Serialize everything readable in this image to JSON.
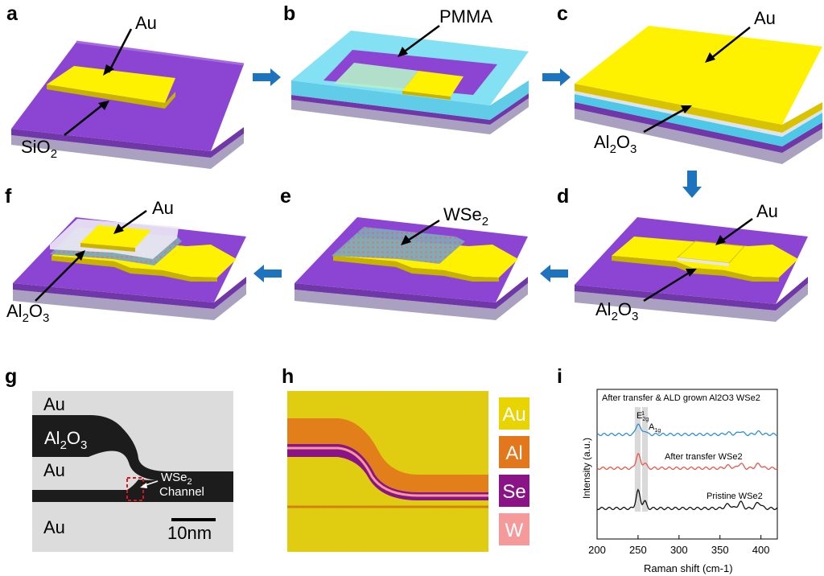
{
  "panels": {
    "a": {
      "letter": "a",
      "top_label": "Au",
      "bottom_label": "SiO"
    },
    "b": {
      "letter": "b",
      "label": "PMMA"
    },
    "c": {
      "letter": "c",
      "top_label": "Au",
      "bottom_label": "Al"
    },
    "d": {
      "letter": "d",
      "top_label": "Au",
      "bottom_label": "Al"
    },
    "e": {
      "letter": "e",
      "label": "WSe"
    },
    "f": {
      "letter": "f",
      "top_label": "Au",
      "bottom_label": "Al"
    },
    "g": {
      "letter": "g",
      "au1": "Au",
      "al2o3": "Al",
      "au2": "Au",
      "au3": "Au",
      "wse2": "WSe",
      "channel": "Channel",
      "scale": "10nm"
    },
    "h": {
      "letter": "h",
      "legend": [
        {
          "label": "Au",
          "color": "#e8d400"
        },
        {
          "label": "Al",
          "color": "#e3771c"
        },
        {
          "label": "Se",
          "color": "#8a1486"
        },
        {
          "label": "W",
          "color": "#f59a9a"
        }
      ]
    },
    "i": {
      "letter": "i"
    }
  },
  "subscripts": {
    "two": "2",
    "three": "3",
    "e_sub": "2g",
    "e_sup": "1",
    "a_sub": "1g"
  },
  "chart_data": {
    "type": "line",
    "title": "After transfer & ALD grown Al2O3 WSe2",
    "xlabel": "Raman shift (cm-1)",
    "ylabel": "Intensity (a.u.)",
    "xlim": [
      200,
      420
    ],
    "xticks": [
      200,
      250,
      300,
      350,
      400
    ],
    "peak_labels": {
      "e": "E",
      "a": "A"
    },
    "series": [
      {
        "name": "After transfer & ALD grown Al2O3 WSe2",
        "color": "#2e8fd6"
      },
      {
        "name": "After transfer  WSe2",
        "color": "#e8574a"
      },
      {
        "name": "Pristine WSe2",
        "color": "#111111"
      }
    ],
    "peaks_cm": [
      250,
      258,
      360,
      375,
      397
    ],
    "highlight_bands": [
      [
        246,
        253
      ],
      [
        255,
        262
      ]
    ]
  }
}
